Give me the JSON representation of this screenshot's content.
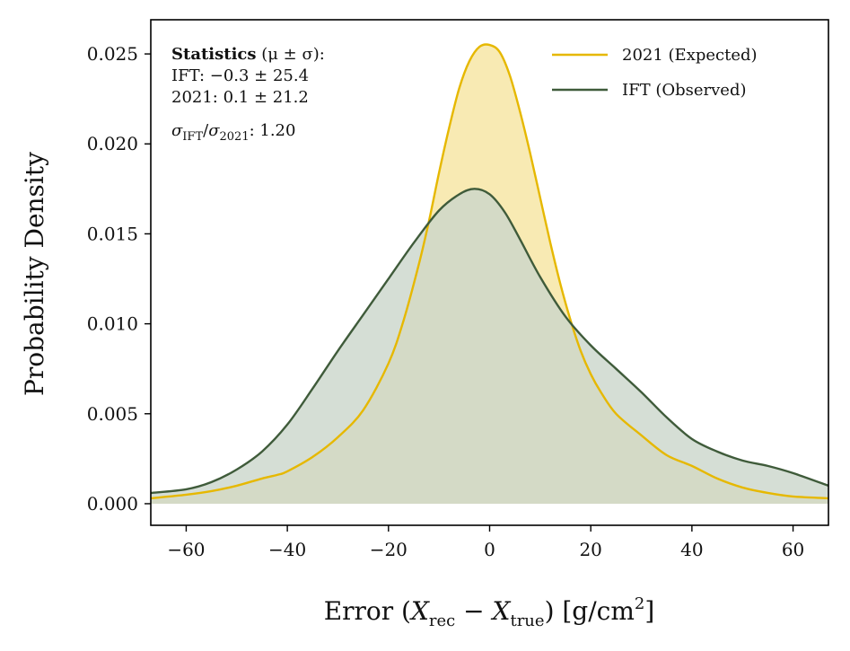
{
  "chart_data": {
    "type": "area",
    "title": "",
    "xlabel": "Error (X_rec − X_true) [g/cm²]",
    "xlabel_parts": {
      "prefix": "Error (",
      "x": "X",
      "rec": "rec",
      "minus": " − ",
      "true": "true",
      "close": ") [g/cm",
      "sup": "2",
      "end": "]"
    },
    "ylabel": "Probability Density",
    "xlim": [
      -67,
      67
    ],
    "ylim": [
      -0.0012,
      0.0269
    ],
    "xticks": [
      -60,
      -40,
      -20,
      0,
      20,
      40,
      60
    ],
    "xtick_labels": [
      "−60",
      "−40",
      "−20",
      "0",
      "20",
      "40",
      "60"
    ],
    "yticks": [
      0.0,
      0.005,
      0.01,
      0.015,
      0.02,
      0.025
    ],
    "ytick_labels": [
      "0.000",
      "0.005",
      "0.010",
      "0.015",
      "0.020",
      "0.025"
    ],
    "grid": false,
    "legend_position": "top-right",
    "series": [
      {
        "name": "2021 (Expected)",
        "color": "#e6b800",
        "fill": "#f7e6a6",
        "x": [
          -67,
          -60,
          -55,
          -50,
          -45,
          -42,
          -40,
          -35,
          -30,
          -25,
          -20,
          -17,
          -14,
          -12,
          -10,
          -8,
          -6,
          -4,
          -2,
          0,
          2,
          4,
          6,
          8,
          10,
          12,
          14,
          16,
          18,
          20,
          22,
          25,
          30,
          35,
          40,
          45,
          50,
          55,
          60,
          67
        ],
        "values": [
          0.0003,
          0.0005,
          0.0007,
          0.001,
          0.0014,
          0.0016,
          0.0018,
          0.0026,
          0.0037,
          0.0052,
          0.0078,
          0.0102,
          0.0133,
          0.0157,
          0.0184,
          0.0209,
          0.0231,
          0.0246,
          0.0254,
          0.0255,
          0.0251,
          0.0238,
          0.0218,
          0.0195,
          0.017,
          0.0145,
          0.0122,
          0.0102,
          0.0085,
          0.0072,
          0.0062,
          0.005,
          0.0038,
          0.0027,
          0.0021,
          0.0014,
          0.0009,
          0.0006,
          0.0004,
          0.0003
        ]
      },
      {
        "name": "IFT (Observed)",
        "color": "#3f5b3a",
        "fill": "#cad6ca",
        "x": [
          -67,
          -60,
          -55,
          -50,
          -45,
          -40,
          -35,
          -30,
          -25,
          -20,
          -15,
          -10,
          -6,
          -3,
          0,
          3,
          6,
          10,
          15,
          20,
          25,
          30,
          35,
          40,
          45,
          50,
          55,
          60,
          67
        ],
        "values": [
          0.0006,
          0.0008,
          0.0012,
          0.0019,
          0.0029,
          0.0044,
          0.0064,
          0.0085,
          0.0105,
          0.0125,
          0.0145,
          0.0163,
          0.0172,
          0.0175,
          0.0172,
          0.0162,
          0.0147,
          0.0126,
          0.0104,
          0.0088,
          0.0075,
          0.0062,
          0.0048,
          0.0036,
          0.0029,
          0.0024,
          0.0021,
          0.0017,
          0.001
        ]
      }
    ],
    "stats_box": {
      "heading_bold": "Statistics",
      "heading_rest": " (μ ± σ):",
      "line1": "IFT: −0.3 ± 25.4",
      "line2": "2021: 0.1 ± 21.2",
      "ratio": {
        "sigma1": "σ",
        "sub1": "IFT",
        "slash": "/",
        "sigma2": "σ",
        "sub2": "2021",
        "value": ": 1.20"
      }
    }
  }
}
